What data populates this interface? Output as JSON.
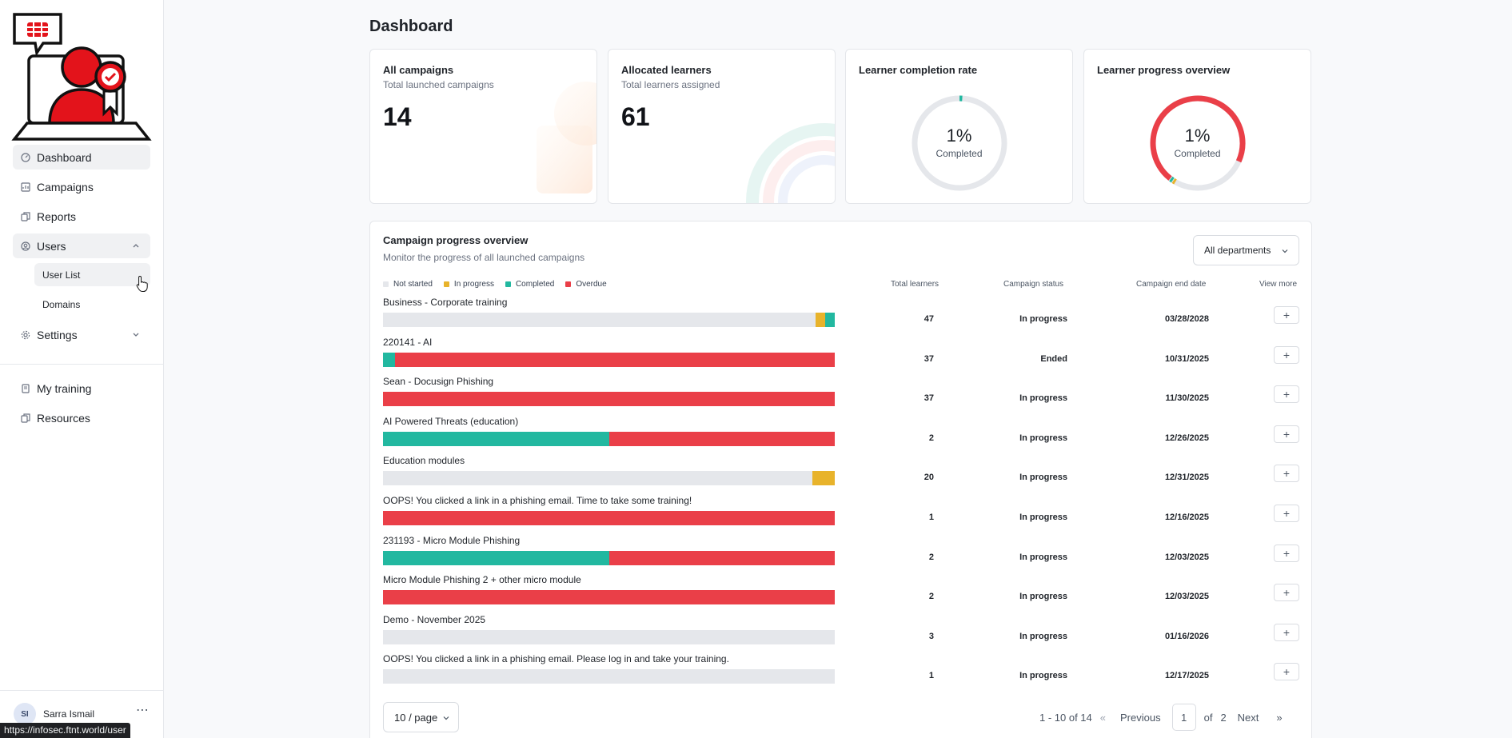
{
  "sidebar": {
    "nav": [
      {
        "label": "Dashboard",
        "icon": "dashboard-icon",
        "active": true
      },
      {
        "label": "Campaigns",
        "icon": "campaigns-icon"
      },
      {
        "label": "Reports",
        "icon": "reports-icon"
      },
      {
        "label": "Users",
        "icon": "users-icon",
        "expanded": true
      }
    ],
    "users_sub": [
      {
        "label": "User List",
        "active": true
      },
      {
        "label": "Domains"
      }
    ],
    "settings": {
      "label": "Settings",
      "icon": "gear-icon"
    },
    "secondary": [
      {
        "label": "My training",
        "icon": "training-icon"
      },
      {
        "label": "Resources",
        "icon": "resources-icon"
      }
    ],
    "user": {
      "initials": "SI",
      "name": "Sarra Ismail"
    }
  },
  "status_url": "https://infosec.ftnt.world/user",
  "page_title": "Dashboard",
  "cards": {
    "campaigns": {
      "title": "All campaigns",
      "subtitle": "Total launched campaigns",
      "value": "14"
    },
    "learners": {
      "title": "Allocated learners",
      "subtitle": "Total learners assigned",
      "value": "61"
    },
    "completion": {
      "title": "Learner completion rate",
      "percent": "1%",
      "label": "Completed",
      "fraction": 0.01
    },
    "progress": {
      "title": "Learner progress overview",
      "percent": "1%",
      "label": "Completed"
    }
  },
  "campaign_panel": {
    "title": "Campaign progress overview",
    "subtitle": "Monitor the progress of all launched campaigns",
    "department_filter": "All departments",
    "legend": [
      {
        "label": "Not started",
        "color": "#e5e7eb"
      },
      {
        "label": "In progress",
        "color": "#e8b32b"
      },
      {
        "label": "Completed",
        "color": "#22b8a0"
      },
      {
        "label": "Overdue",
        "color": "#ea3f48"
      }
    ],
    "columns": {
      "total": "Total learners",
      "status": "Campaign status",
      "end_date": "Campaign end date",
      "more": "View more"
    },
    "rows": [
      {
        "name": "Business - Corporate training",
        "total": "47",
        "status": "In progress",
        "end_date": "03/28/2028",
        "segments": [
          0.957,
          0.021,
          0.022,
          0
        ]
      },
      {
        "name": "220141 - AI",
        "total": "37",
        "status": "Ended",
        "end_date": "10/31/2025",
        "segments": [
          0,
          0,
          0.027,
          0.973
        ]
      },
      {
        "name": "Sean - Docusign Phishing",
        "total": "37",
        "status": "In progress",
        "end_date": "11/30/2025",
        "segments": [
          0,
          0,
          0,
          1
        ]
      },
      {
        "name": "AI Powered Threats (education)",
        "total": "2",
        "status": "In progress",
        "end_date": "12/26/2025",
        "segments": [
          0,
          0,
          0.5,
          0.5
        ]
      },
      {
        "name": "Education modules",
        "total": "20",
        "status": "In progress",
        "end_date": "12/31/2025",
        "segments": [
          0.95,
          0.05,
          0,
          0
        ]
      },
      {
        "name": "OOPS! You clicked a link in a phishing email. Time to take some training!",
        "total": "1",
        "status": "In progress",
        "end_date": "12/16/2025",
        "segments": [
          0,
          0,
          0,
          1
        ]
      },
      {
        "name": "231193 - Micro Module Phishing",
        "total": "2",
        "status": "In progress",
        "end_date": "12/03/2025",
        "segments": [
          0,
          0,
          0.5,
          0.5
        ]
      },
      {
        "name": "Micro Module Phishing 2 + other micro module",
        "total": "2",
        "status": "In progress",
        "end_date": "12/03/2025",
        "segments": [
          0,
          0,
          0,
          1
        ]
      },
      {
        "name": "Demo - November 2025",
        "total": "3",
        "status": "In progress",
        "end_date": "01/16/2026",
        "segments": [
          1,
          0,
          0,
          0
        ]
      },
      {
        "name": "OOPS! You clicked a link in a phishing email. Please log in and take your training.",
        "total": "1",
        "status": "In progress",
        "end_date": "12/17/2025",
        "segments": [
          1,
          0,
          0,
          0
        ]
      }
    ],
    "pagination": {
      "page_size": "10 / page",
      "range": "1 - 10 of 14",
      "previous": "Previous",
      "current": "1",
      "of": "of",
      "total_pages": "2",
      "next": "Next"
    }
  }
}
